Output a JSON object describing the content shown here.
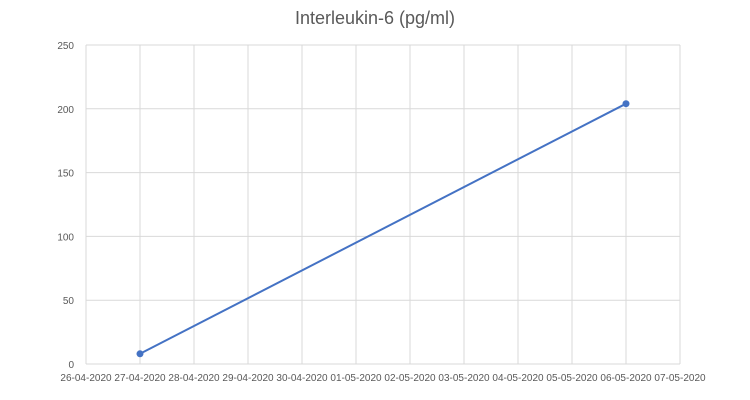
{
  "chart_data": {
    "type": "line",
    "title": "Interleukin-6 (pg/ml)",
    "xlabel": "",
    "ylabel": "",
    "categories": [
      "26-04-2020",
      "27-04-2020",
      "28-04-2020",
      "29-04-2020",
      "30-04-2020",
      "01-05-2020",
      "02-05-2020",
      "03-05-2020",
      "04-05-2020",
      "05-05-2020",
      "06-05-2020",
      "07-05-2020"
    ],
    "series": [
      {
        "name": "Interleukin-6 (pg/ml)",
        "x": [
          "27-04-2020",
          "06-05-2020"
        ],
        "values": [
          8,
          204
        ],
        "color": "#4472c4"
      }
    ],
    "ylim": [
      0,
      250
    ],
    "yticks": [
      0,
      50,
      100,
      150,
      200,
      250
    ],
    "grid": true,
    "legend": "none"
  }
}
